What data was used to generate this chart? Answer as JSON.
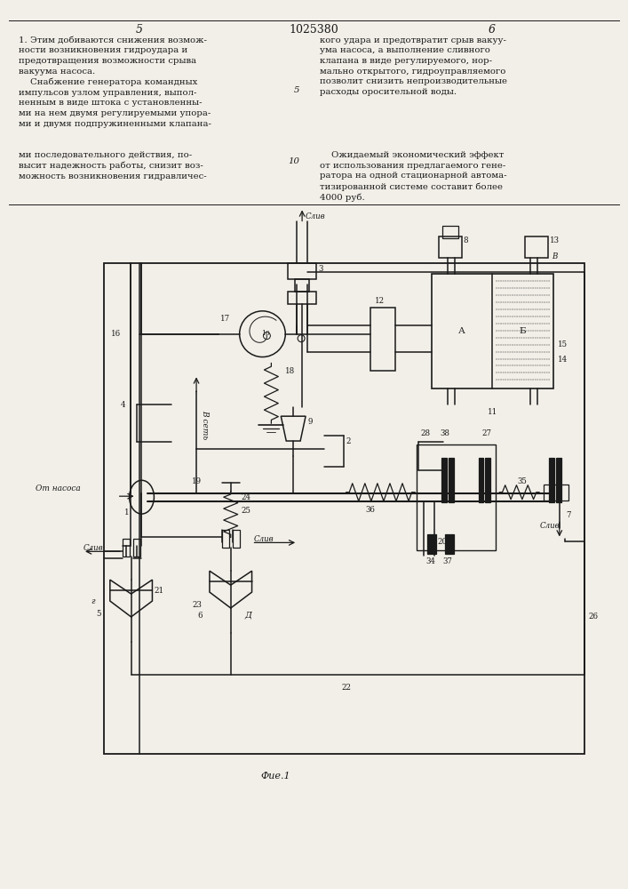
{
  "bg_color": "#f2efe8",
  "black": "#1a1a1a",
  "page_left": "5",
  "page_center": "1025380",
  "page_right": "6",
  "fig_label": "Фие.1"
}
